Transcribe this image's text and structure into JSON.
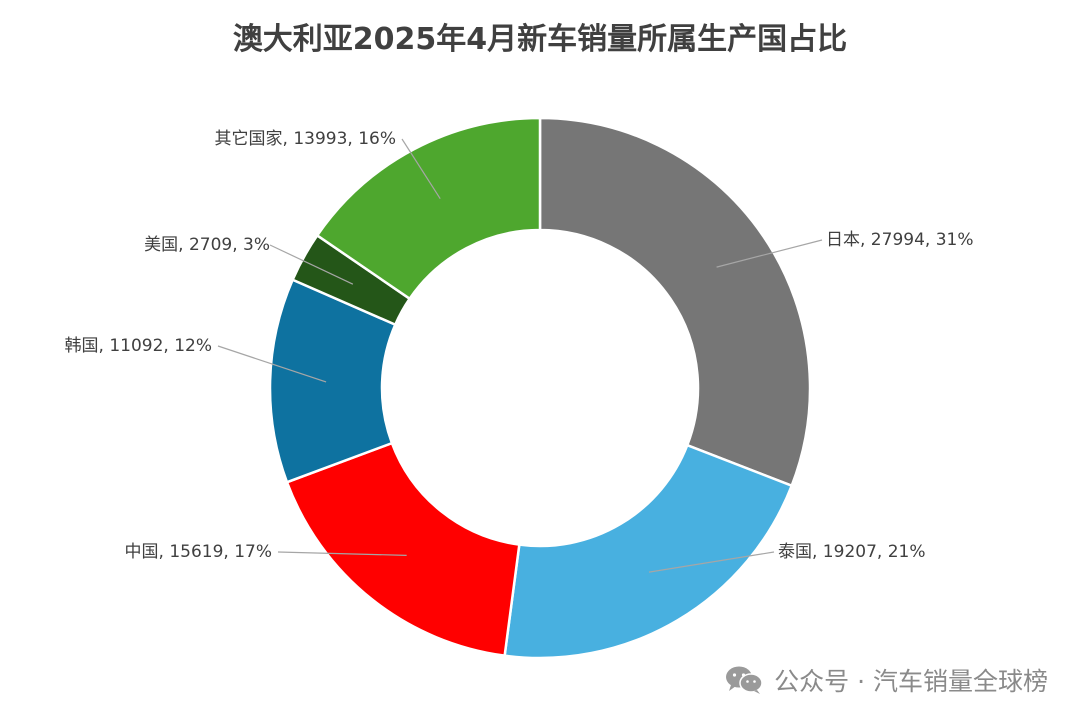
{
  "chart_data": {
    "type": "donut",
    "title": "澳大利亚2025年4月新车销量所属生产国占比",
    "slices": [
      {
        "name": "日本",
        "value": 27994,
        "percent": "31%",
        "color": "#767676"
      },
      {
        "name": "泰国",
        "value": 19207,
        "percent": "21%",
        "color": "#48b0e0"
      },
      {
        "name": "中国",
        "value": 15619,
        "percent": "17%",
        "color": "#ff0000"
      },
      {
        "name": "韩国",
        "value": 11092,
        "percent": "12%",
        "color": "#0e72a0"
      },
      {
        "name": "美国",
        "value": 2709,
        "percent": "3%",
        "color": "#245618"
      },
      {
        "name": "其它国家",
        "value": 13993,
        "percent": "16%",
        "color": "#4ea72e"
      }
    ],
    "legend": "none"
  },
  "watermark": {
    "text": "公众号 · 汽车销量全球榜",
    "icon": "wechat-icon",
    "color": "#8a8a8a"
  }
}
